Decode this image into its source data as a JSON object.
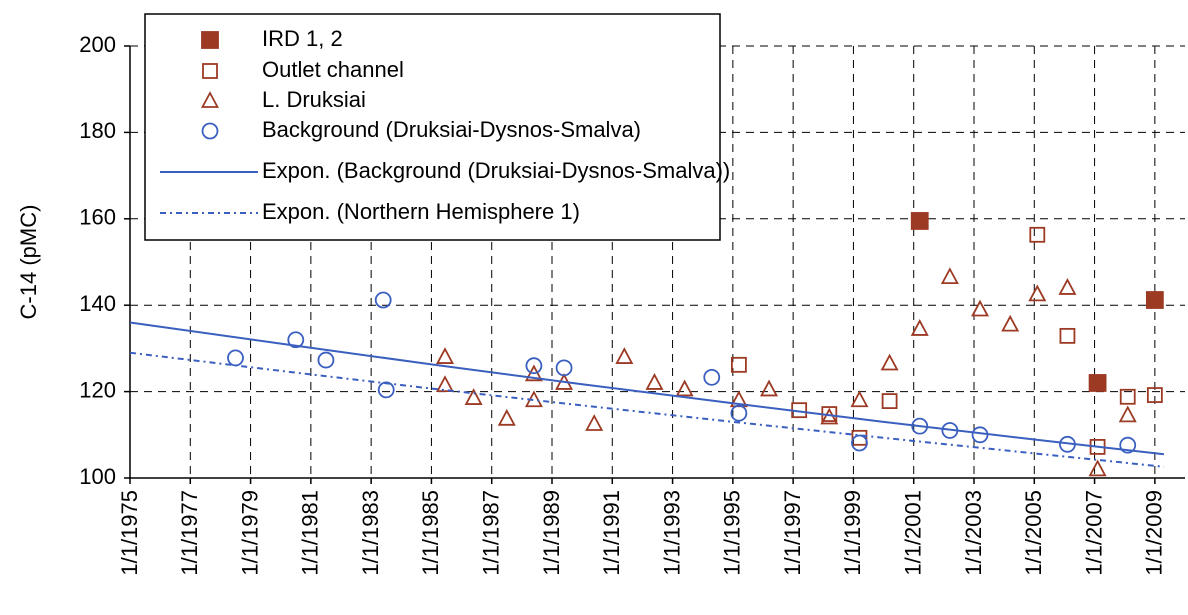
{
  "chart_data": {
    "type": "scatter",
    "y_label": "C-14 (pMC)",
    "xlim": [
      1975,
      2010
    ],
    "ylim": [
      100,
      200
    ],
    "xticks": [
      {
        "value": 1975,
        "label": "1/1/1975"
      },
      {
        "value": 1977,
        "label": "1/1/1977"
      },
      {
        "value": 1979,
        "label": "1/1/1979"
      },
      {
        "value": 1981,
        "label": "1/1/1981"
      },
      {
        "value": 1983,
        "label": "1/1/1983"
      },
      {
        "value": 1985,
        "label": "1/1/1985"
      },
      {
        "value": 1987,
        "label": "1/1/1987"
      },
      {
        "value": 1989,
        "label": "1/1/1989"
      },
      {
        "value": 1991,
        "label": "1/1/1991"
      },
      {
        "value": 1993,
        "label": "1/1/1993"
      },
      {
        "value": 1995,
        "label": "1/1/1995"
      },
      {
        "value": 1997,
        "label": "1/1/1997"
      },
      {
        "value": 1999,
        "label": "1/1/1999"
      },
      {
        "value": 2001,
        "label": "1/1/2001"
      },
      {
        "value": 2003,
        "label": "1/1/2003"
      },
      {
        "value": 2005,
        "label": "1/1/2005"
      },
      {
        "value": 2007,
        "label": "1/1/2007"
      },
      {
        "value": 2009,
        "label": "1/1/2009"
      }
    ],
    "yticks": [
      100,
      120,
      140,
      160,
      180,
      200
    ],
    "grid": true,
    "legend": "upper left",
    "series": [
      {
        "name": "IRD 1, 2",
        "marker": "filled-square",
        "color": "#9c3a24",
        "x": [
          2001.2,
          2007.1,
          2009.0
        ],
        "values": [
          159.5,
          122,
          141.2
        ]
      },
      {
        "name": "Outlet channel",
        "marker": "square",
        "color": "#9c3a24",
        "x": [
          1995.2,
          1997.2,
          1998.2,
          1999.2,
          2000.2,
          2005.1,
          2006.1,
          2007.1,
          2008.1,
          2009.0
        ],
        "values": [
          126.2,
          115.7,
          114.8,
          109.3,
          117.8,
          156.3,
          132.9,
          107.2,
          118.8,
          119.2
        ]
      },
      {
        "name": "L. Druksiai",
        "marker": "triangle",
        "color": "#9c3a24",
        "x": [
          1985.45,
          1985.45,
          1986.4,
          1987.5,
          1988.4,
          1988.4,
          1989.4,
          1990.4,
          1991.4,
          1992.4,
          1993.4,
          1995.2,
          1996.2,
          1998.2,
          1999.2,
          2000.2,
          2001.2,
          2002.2,
          2003.2,
          2004.2,
          2005.1,
          2006.1,
          2007.1,
          2008.1
        ],
        "values": [
          128,
          121.5,
          118.5,
          113.7,
          124,
          118,
          122,
          112.5,
          128,
          122,
          120.5,
          118,
          120.5,
          114,
          118,
          126.5,
          134.5,
          146.5,
          139,
          135.5,
          142.5,
          144,
          102,
          114.5
        ]
      },
      {
        "name": "Background (Druksiai-Dysnos-Smalva)",
        "marker": "circle",
        "color": "#3a5fbf",
        "x": [
          1978.5,
          1980.5,
          1981.5,
          1983.4,
          1983.5,
          1988.4,
          1989.4,
          1994.3,
          1995.2,
          1999.2,
          2001.2,
          2002.2,
          2003.2,
          2006.1,
          2008.1
        ],
        "values": [
          127.8,
          132,
          127.3,
          141.2,
          120.4,
          126,
          125.5,
          123.3,
          115,
          108.1,
          112,
          111,
          110,
          107.8,
          107.6
        ]
      },
      {
        "name": "Expon. (Background (Druksiai-Dysnos-Smalva))",
        "marker": "line",
        "line_style": "solid",
        "color": "#3a5fbf",
        "x": [
          1975,
          1980,
          1985,
          1990,
          1995,
          2000,
          2005,
          2009.3
        ],
        "values": [
          136,
          131.1,
          126.3,
          121.7,
          117.3,
          113.0,
          108.9,
          105.5
        ]
      },
      {
        "name": "Expon. (Northern Hemisphere 1)",
        "marker": "line",
        "line_style": "dashdot",
        "color": "#3a5fbf",
        "x": [
          1975,
          1980,
          1985,
          1990,
          1995,
          2000,
          2005,
          2009.3
        ],
        "values": [
          129,
          124.8,
          120.7,
          116.8,
          113.0,
          109.3,
          105.7,
          102.6
        ]
      }
    ]
  }
}
